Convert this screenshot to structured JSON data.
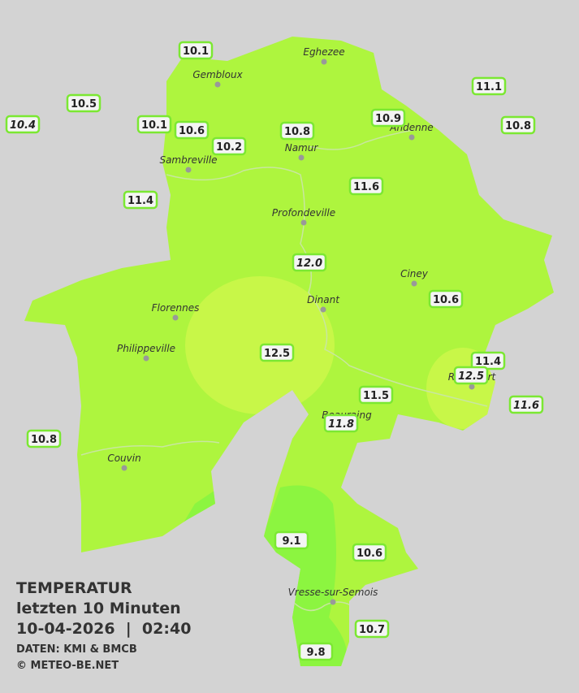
{
  "map": {
    "cities": [
      "Eghezee",
      "Gembloux",
      "Andenne",
      "Namur",
      "Sambreville",
      "Profondeville",
      "Ciney",
      "Dinant",
      "Florennes",
      "Philippeville",
      "Rochefort",
      "Beauraing",
      "Couvin",
      "Vresse-sur-Semois"
    ],
    "stations": [
      {
        "reading": "10.1"
      },
      {
        "reading": "10.5"
      },
      {
        "reading": "10.4",
        "italic": true
      },
      {
        "reading": "10.1"
      },
      {
        "reading": "10.6"
      },
      {
        "reading": "10.2"
      },
      {
        "reading": "10.8"
      },
      {
        "reading": "10.9"
      },
      {
        "reading": "11.1"
      },
      {
        "reading": "10.8"
      },
      {
        "reading": "11.4"
      },
      {
        "reading": "11.6"
      },
      {
        "reading": "12.0",
        "italic": true
      },
      {
        "reading": "10.6"
      },
      {
        "reading": "12.5"
      },
      {
        "reading": "11.4"
      },
      {
        "reading": "12.5",
        "italic": true
      },
      {
        "reading": "11.5"
      },
      {
        "reading": "11.6",
        "italic": true
      },
      {
        "reading": "11.8",
        "italic": true
      },
      {
        "reading": "10.8"
      },
      {
        "reading": "9.1"
      },
      {
        "reading": "10.6"
      },
      {
        "reading": "10.7"
      },
      {
        "reading": "9.8"
      }
    ],
    "legend": {
      "title": "TEMPERATUR",
      "period": "letzten 10 Minuten",
      "datetime": "10-04-2026  |  02:40",
      "source": "DATEN: KMI & BMCB",
      "copyright": "© METEO-BE.NET"
    }
  }
}
